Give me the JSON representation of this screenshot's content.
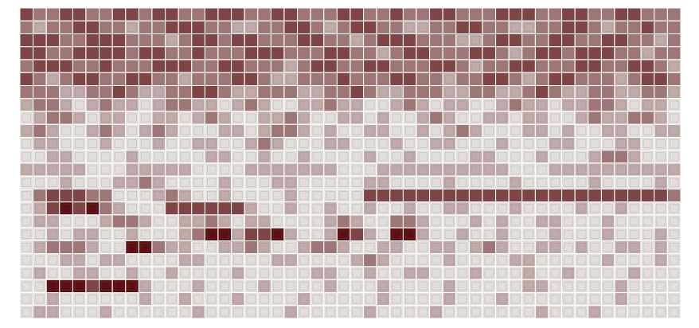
{
  "chart_data": {
    "type": "heatmap",
    "tick_labels": false,
    "grid": false,
    "color": "#5c0f12",
    "clim": [
      0,
      4
    ],
    "cells": [
      [
        3,
        2,
        2,
        3,
        3,
        2,
        2,
        3,
        3,
        2,
        3,
        3,
        2,
        2,
        3,
        3,
        3,
        2,
        2,
        3,
        3,
        2,
        2,
        2,
        3,
        3,
        2,
        2,
        3,
        2,
        2,
        3,
        3,
        2,
        2,
        2,
        3,
        3,
        3,
        2,
        2,
        3,
        3,
        2,
        2,
        3,
        3,
        2,
        2,
        2
      ],
      [
        2,
        1,
        2,
        2,
        3,
        3,
        2,
        2,
        1,
        2,
        2,
        3,
        3,
        3,
        2,
        2,
        1,
        1,
        2,
        2,
        3,
        3,
        2,
        1,
        2,
        3,
        3,
        2,
        2,
        1,
        1,
        2,
        2,
        3,
        3,
        2,
        2,
        1,
        1,
        2,
        2,
        3,
        3,
        2,
        1,
        2,
        2,
        3,
        2,
        2
      ],
      [
        3,
        3,
        3,
        2,
        2,
        3,
        3,
        3,
        2,
        2,
        2,
        1,
        2,
        3,
        3,
        2,
        3,
        3,
        2,
        2,
        2,
        3,
        3,
        2,
        2,
        1,
        2,
        3,
        3,
        3,
        2,
        2,
        2,
        1,
        1,
        2,
        3,
        3,
        2,
        2,
        3,
        3,
        2,
        2,
        3,
        3,
        2,
        2,
        1,
        2
      ],
      [
        3,
        3,
        2,
        2,
        3,
        3,
        3,
        3,
        2,
        3,
        3,
        2,
        2,
        3,
        2,
        2,
        2,
        3,
        3,
        3,
        2,
        2,
        2,
        3,
        3,
        2,
        2,
        1,
        2,
        3,
        3,
        2,
        2,
        2,
        3,
        3,
        2,
        1,
        2,
        3,
        3,
        2,
        3,
        3,
        3,
        2,
        2,
        1,
        2,
        2
      ],
      [
        2,
        3,
        3,
        3,
        2,
        2,
        3,
        2,
        2,
        2,
        3,
        3,
        3,
        2,
        2,
        3,
        3,
        2,
        2,
        2,
        1,
        2,
        3,
        3,
        2,
        2,
        3,
        3,
        2,
        2,
        2,
        3,
        3,
        2,
        1,
        2,
        2,
        3,
        3,
        2,
        2,
        2,
        3,
        3,
        2,
        2,
        3,
        3,
        2,
        1
      ],
      [
        3,
        2,
        1,
        2,
        3,
        3,
        2,
        2,
        3,
        3,
        2,
        2,
        1,
        2,
        2,
        2,
        3,
        3,
        2,
        1,
        1,
        2,
        2,
        2,
        3,
        2,
        2,
        2,
        3,
        3,
        2,
        2,
        1,
        2,
        2,
        3,
        3,
        2,
        1,
        2,
        3,
        3,
        2,
        2,
        2,
        1,
        2,
        3,
        3,
        2
      ],
      [
        2,
        2,
        2,
        1,
        1,
        2,
        2,
        3,
        2,
        1,
        1,
        2,
        2,
        3,
        3,
        2,
        1,
        1,
        2,
        2,
        2,
        1,
        1,
        2,
        2,
        3,
        2,
        1,
        1,
        2,
        2,
        2,
        1,
        1,
        2,
        2,
        1,
        1,
        2,
        3,
        2,
        1,
        1,
        2,
        2,
        1,
        1,
        2,
        2,
        1
      ],
      [
        1,
        2,
        2,
        1,
        0,
        1,
        2,
        1,
        1,
        0,
        1,
        2,
        2,
        1,
        1,
        0,
        1,
        2,
        1,
        0,
        0,
        1,
        1,
        2,
        1,
        1,
        0,
        0,
        1,
        2,
        1,
        0,
        1,
        1,
        0,
        0,
        1,
        2,
        1,
        1,
        0,
        1,
        1,
        2,
        2,
        1,
        0,
        1,
        1,
        0
      ],
      [
        0,
        1,
        2,
        2,
        1,
        0,
        1,
        1,
        0,
        0,
        1,
        1,
        0,
        1,
        2,
        1,
        0,
        0,
        1,
        1,
        2,
        1,
        0,
        0,
        1,
        1,
        0,
        1,
        0,
        0,
        1,
        2,
        1,
        0,
        0,
        1,
        1,
        0,
        1,
        1,
        0,
        0,
        1,
        2,
        1,
        1,
        2,
        2,
        1,
        0
      ],
      [
        1,
        2,
        1,
        0,
        0,
        1,
        2,
        1,
        0,
        1,
        2,
        1,
        0,
        0,
        0,
        1,
        1,
        0,
        1,
        2,
        2,
        1,
        0,
        1,
        0,
        0,
        1,
        1,
        0,
        0,
        1,
        0,
        1,
        2,
        1,
        0,
        0,
        0,
        1,
        1,
        0,
        1,
        0,
        0,
        1,
        1,
        0,
        0,
        1,
        1
      ],
      [
        0,
        1,
        1,
        0,
        0,
        0,
        1,
        0,
        0,
        0,
        1,
        0,
        0,
        1,
        1,
        0,
        0,
        1,
        2,
        1,
        0,
        0,
        0,
        1,
        1,
        0,
        0,
        0,
        1,
        0,
        0,
        1,
        1,
        0,
        0,
        0,
        1,
        0,
        0,
        0,
        1,
        1,
        0,
        0,
        0,
        1,
        1,
        0,
        0,
        0
      ],
      [
        0,
        0,
        1,
        1,
        0,
        0,
        0,
        0,
        1,
        0,
        0,
        0,
        0,
        0,
        1,
        1,
        0,
        0,
        1,
        0,
        0,
        1,
        0,
        0,
        0,
        0,
        1,
        0,
        0,
        1,
        0,
        0,
        0,
        0,
        1,
        1,
        0,
        0,
        0,
        1,
        0,
        0,
        0,
        1,
        2,
        2,
        1,
        0,
        0,
        0
      ],
      [
        1,
        1,
        1,
        1,
        1,
        0,
        0,
        0,
        1,
        1,
        1,
        1,
        1,
        0,
        0,
        0,
        0,
        1,
        1,
        1,
        1,
        1,
        1,
        1,
        0,
        0,
        0,
        1,
        1,
        1,
        1,
        1,
        1,
        1,
        1,
        1,
        1,
        0,
        0,
        0,
        1,
        1,
        1,
        1,
        1,
        1,
        1,
        1,
        1,
        1
      ],
      [
        0,
        0,
        0,
        1,
        0,
        0,
        0,
        1,
        1,
        2,
        1,
        0,
        0,
        0,
        0,
        1,
        0,
        0,
        0,
        1,
        1,
        0,
        0,
        0,
        0,
        0,
        1,
        1,
        0,
        0,
        0,
        0,
        1,
        0,
        0,
        0,
        0,
        1,
        0,
        0,
        0,
        0,
        0,
        1,
        0,
        0,
        0,
        0,
        1,
        0
      ],
      [
        0,
        2,
        3,
        3,
        3,
        2,
        2,
        0,
        0,
        0,
        1,
        2,
        1,
        0,
        0,
        1,
        0,
        0,
        0,
        0,
        1,
        0,
        0,
        0,
        0,
        0,
        3,
        3,
        3,
        3,
        3,
        3,
        3,
        3,
        3,
        3,
        3,
        3,
        3,
        3,
        3,
        3,
        3,
        3,
        3,
        3,
        3,
        3,
        3,
        2
      ],
      [
        0,
        1,
        3,
        4,
        3,
        4,
        2,
        1,
        0,
        0,
        0,
        3,
        3,
        3,
        3,
        3,
        3,
        1,
        0,
        0,
        1,
        0,
        0,
        1,
        0,
        0,
        1,
        0,
        0,
        1,
        0,
        0,
        1,
        1,
        0,
        0,
        0,
        1,
        0,
        0,
        0,
        0,
        1,
        0,
        0,
        1,
        0,
        0,
        0,
        0
      ],
      [
        0,
        1,
        1,
        0,
        0,
        0,
        1,
        2,
        2,
        1,
        0,
        0,
        1,
        1,
        2,
        1,
        0,
        1,
        1,
        0,
        0,
        0,
        0,
        1,
        2,
        1,
        0,
        0,
        2,
        2,
        1,
        0,
        0,
        0,
        1,
        0,
        1,
        0,
        0,
        1,
        1,
        0,
        0,
        0,
        1,
        0,
        0,
        0,
        0,
        0
      ],
      [
        0,
        0,
        1,
        0,
        1,
        1,
        0,
        0,
        1,
        0,
        0,
        0,
        1,
        2,
        4,
        4,
        1,
        3,
        3,
        4,
        1,
        0,
        0,
        1,
        4,
        3,
        1,
        0,
        4,
        4,
        1,
        0,
        0,
        1,
        0,
        0,
        1,
        0,
        0,
        0,
        1,
        0,
        0,
        0,
        1,
        0,
        0,
        0,
        1,
        0
      ],
      [
        0,
        1,
        2,
        2,
        2,
        1,
        0,
        0,
        4,
        4,
        2,
        1,
        1,
        0,
        0,
        1,
        1,
        2,
        1,
        0,
        0,
        1,
        2,
        2,
        1,
        0,
        0,
        1,
        1,
        0,
        0,
        1,
        1,
        0,
        1,
        2,
        1,
        0,
        0,
        1,
        1,
        0,
        1,
        0,
        0,
        1,
        1,
        0,
        1,
        0
      ],
      [
        0,
        0,
        0,
        1,
        1,
        0,
        1,
        1,
        0,
        0,
        0,
        0,
        1,
        1,
        0,
        0,
        0,
        0,
        0,
        1,
        1,
        0,
        0,
        0,
        0,
        1,
        2,
        1,
        0,
        0,
        0,
        0,
        1,
        0,
        0,
        0,
        0,
        1,
        1,
        0,
        0,
        0,
        0,
        0,
        1,
        0,
        0,
        0,
        1,
        0
      ],
      [
        0,
        1,
        0,
        0,
        1,
        1,
        0,
        0,
        1,
        0,
        0,
        1,
        0,
        0,
        0,
        0,
        1,
        0,
        0,
        0,
        0,
        0,
        1,
        1,
        0,
        0,
        1,
        0,
        0,
        1,
        1,
        0,
        0,
        0,
        1,
        0,
        0,
        0,
        1,
        0,
        0,
        1,
        0,
        0,
        0,
        0,
        1,
        0,
        0,
        0
      ],
      [
        0,
        0,
        4,
        4,
        4,
        3,
        4,
        4,
        4,
        1,
        0,
        0,
        0,
        1,
        0,
        0,
        0,
        0,
        1,
        0,
        0,
        0,
        0,
        1,
        0,
        0,
        0,
        1,
        0,
        0,
        0,
        0,
        1,
        0,
        0,
        0,
        0,
        0,
        1,
        1,
        0,
        0,
        0,
        0,
        0,
        1,
        0,
        0,
        0,
        0
      ],
      [
        0,
        0,
        1,
        0,
        0,
        0,
        0,
        0,
        0,
        1,
        0,
        0,
        1,
        0,
        0,
        0,
        1,
        0,
        0,
        0,
        0,
        1,
        0,
        0,
        0,
        0,
        0,
        1,
        0,
        0,
        0,
        0,
        1,
        0,
        0,
        0,
        1,
        0,
        0,
        0,
        0,
        0,
        0,
        0,
        0,
        1,
        0,
        0,
        0,
        0
      ],
      [
        0,
        1,
        1,
        0,
        0,
        0,
        1,
        0,
        0,
        0,
        0,
        0,
        0,
        1,
        0,
        0,
        0,
        0,
        0,
        0,
        1,
        0,
        0,
        0,
        0,
        0,
        1,
        0,
        0,
        0,
        0,
        1,
        0,
        0,
        0,
        0,
        0,
        0,
        0,
        1,
        0,
        0,
        0,
        1,
        0,
        0,
        0,
        0,
        0,
        0
      ]
    ]
  }
}
